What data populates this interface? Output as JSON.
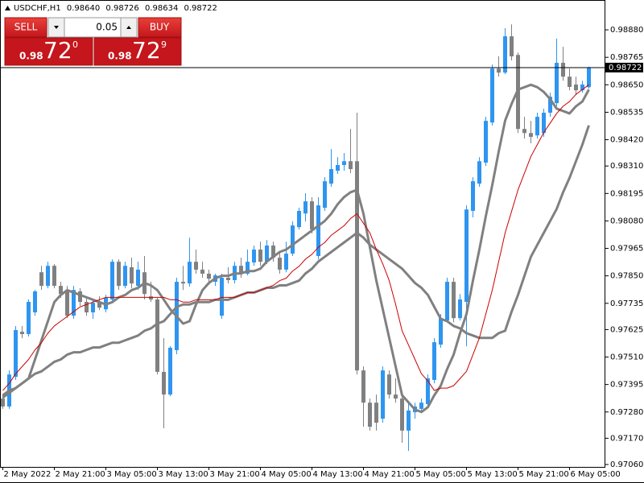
{
  "chart_data": {
    "type": "candlestick",
    "title": "USDCHF,H1",
    "ohlc_labels": [
      "0.98640",
      "0.98726",
      "0.98634",
      "0.98722"
    ],
    "categories": [
      "2 May 2022",
      null,
      null,
      null,
      null,
      null,
      null,
      null,
      "2 May 21:00",
      null,
      null,
      null,
      null,
      null,
      null,
      null,
      "3 May 05:00",
      null,
      null,
      null,
      null,
      null,
      null,
      null,
      "3 May 13:00",
      null,
      null,
      null,
      null,
      null,
      null,
      null,
      "3 May 21:00",
      null,
      null,
      null,
      null,
      null,
      null,
      null,
      "4 May 05:00",
      null,
      null,
      null,
      null,
      null,
      null,
      null,
      "4 May 13:00",
      null,
      null,
      null,
      null,
      null,
      null,
      null,
      "4 May 21:00",
      null,
      null,
      null,
      null,
      null,
      null,
      null,
      "5 May 05:00",
      null,
      null,
      null,
      null,
      null,
      null,
      null,
      "5 May 13:00",
      null,
      null,
      null,
      null,
      null,
      null,
      null,
      "5 May 21:00",
      null,
      null,
      null,
      null,
      null,
      null,
      null,
      "6 May 05:00",
      null,
      null,
      null
    ],
    "open": [
      0.97336,
      0.97303,
      0.97427,
      0.97616,
      0.97606,
      0.97697,
      0.97865,
      0.97808,
      0.97892,
      0.97808,
      0.97791,
      0.97683,
      0.97785,
      0.97741,
      0.97697,
      0.97737,
      0.9771,
      0.97751,
      0.97909,
      0.97808,
      0.97886,
      0.97808,
      0.97865,
      0.97764,
      0.97751,
      0.97448,
      0.97353,
      0.97539,
      0.97825,
      0.97818,
      0.97909,
      0.97876,
      0.97859,
      0.97825,
      0.97683,
      0.97842,
      0.97832,
      0.97892,
      0.97859,
      0.97906,
      0.9796,
      0.97909,
      0.97977,
      0.97926,
      0.97876,
      0.97943,
      0.98054,
      0.98111,
      0.98162,
      0.97933,
      0.98135,
      0.98236,
      0.9829,
      0.98314,
      0.9833,
      0.9833,
      0.97454,
      0.97319,
      0.97319,
      0.97252,
      0.97437,
      0.97353,
      0.97336,
      0.97202,
      0.97279,
      0.97293,
      0.97313,
      0.97414,
      0.97562,
      0.97663,
      0.97825,
      0.97673,
      0.97741,
      0.98122,
      0.98236,
      0.98324,
      0.98492,
      0.98718,
      0.98701,
      0.98853,
      0.98775,
      0.98465,
      0.98448,
      0.98438,
      0.98448,
      0.98533,
      0.98573,
      0.98742,
      0.98684,
      0.98651,
      0.98627,
      0.9864
    ],
    "high": [
      0.97353,
      0.97454,
      0.9764,
      0.9764,
      0.97751,
      0.97791,
      0.97892,
      0.97909,
      0.97899,
      0.97825,
      0.97808,
      0.97808,
      0.97798,
      0.97758,
      0.97751,
      0.97764,
      0.97771,
      0.97919,
      0.97919,
      0.97909,
      0.97926,
      0.97909,
      0.97933,
      0.97825,
      0.97758,
      0.97589,
      0.97555,
      0.97842,
      0.97892,
      0.9801,
      0.9796,
      0.97909,
      0.97876,
      0.97859,
      0.97859,
      0.97886,
      0.97909,
      0.97926,
      0.9796,
      0.97977,
      0.97993,
      0.98,
      0.97993,
      0.97953,
      0.97993,
      0.98078,
      0.98135,
      0.98196,
      0.98179,
      0.98179,
      0.98263,
      0.98381,
      0.98347,
      0.98364,
      0.98465,
      0.98533,
      0.97471,
      0.97336,
      0.97353,
      0.97471,
      0.97454,
      0.97421,
      0.97353,
      0.97319,
      0.97319,
      0.97336,
      0.97437,
      0.97589,
      0.9769,
      0.97842,
      0.97842,
      0.97774,
      0.98145,
      0.98263,
      0.98347,
      0.98516,
      0.98735,
      0.98769,
      0.98887,
      0.98903,
      0.98785,
      0.98516,
      0.98499,
      0.98533,
      0.9855,
      0.98617,
      0.98843,
      0.98809,
      0.98718,
      0.98684,
      0.98667,
      0.98726
    ],
    "low": [
      0.97293,
      0.97293,
      0.97414,
      0.97589,
      0.97596,
      0.97683,
      0.97791,
      0.97798,
      0.97798,
      0.97758,
      0.97673,
      0.9767,
      0.97724,
      0.97683,
      0.9767,
      0.97707,
      0.97697,
      0.97737,
      0.97791,
      0.97798,
      0.97798,
      0.97791,
      0.97751,
      0.97741,
      0.97437,
      0.97212,
      0.97346,
      0.97522,
      0.97791,
      0.97805,
      0.97859,
      0.97842,
      0.97825,
      0.97808,
      0.9767,
      0.97818,
      0.97818,
      0.97842,
      0.97852,
      0.97892,
      0.97892,
      0.97899,
      0.97909,
      0.97859,
      0.97865,
      0.97933,
      0.98044,
      0.98078,
      0.98027,
      0.97919,
      0.98122,
      0.98223,
      0.98277,
      0.9829,
      0.9828,
      0.97437,
      0.97218,
      0.97202,
      0.97202,
      0.97235,
      0.97336,
      0.97319,
      0.97151,
      0.97117,
      0.97252,
      0.97279,
      0.97299,
      0.974,
      0.97549,
      0.97656,
      0.97656,
      0.97663,
      0.97555,
      0.98095,
      0.98223,
      0.9831,
      0.98479,
      0.98684,
      0.98694,
      0.98752,
      0.98448,
      0.98425,
      0.98405,
      0.98425,
      0.98432,
      0.98516,
      0.9856,
      0.98667,
      0.98627,
      0.98607,
      0.98617,
      0.98634
    ],
    "close": [
      0.97303,
      0.97437,
      0.97623,
      0.97606,
      0.97741,
      0.97785,
      0.97808,
      0.97892,
      0.97808,
      0.97774,
      0.97683,
      0.97791,
      0.97741,
      0.97697,
      0.97737,
      0.97717,
      0.97758,
      0.97909,
      0.97808,
      0.97892,
      0.97818,
      0.97876,
      0.97774,
      0.97751,
      0.97448,
      0.97353,
      0.97549,
      0.97825,
      0.97818,
      0.97909,
      0.97876,
      0.97859,
      0.97838,
      0.97852,
      0.97842,
      0.97832,
      0.97892,
      0.97859,
      0.97909,
      0.9796,
      0.97909,
      0.97977,
      0.97926,
      0.97876,
      0.97943,
      0.98061,
      0.98122,
      0.98162,
      0.98044,
      0.98145,
      0.98246,
      0.98297,
      0.98314,
      0.9833,
      0.98297,
      0.97454,
      0.97319,
      0.97218,
      0.97235,
      0.97454,
      0.97353,
      0.97336,
      0.97202,
      0.97286,
      0.97303,
      0.97319,
      0.97421,
      0.97572,
      0.97673,
      0.97825,
      0.97673,
      0.97751,
      0.98128,
      0.98246,
      0.9833,
      0.98499,
      0.98718,
      0.98701,
      0.98853,
      0.98769,
      0.98465,
      0.98448,
      0.98432,
      0.98516,
      0.98533,
      0.986,
      0.98742,
      0.98684,
      0.98641,
      0.98627,
      0.98651,
      0.98722
    ],
    "up_color": "#2e95f0",
    "down_color": "#808080",
    "series": [
      {
        "color": "#808080",
        "line_width": 3,
        "values": [
          0.9734,
          0.9736,
          0.9738,
          0.974,
          0.9742,
          0.975,
          0.9758,
          0.9766,
          0.9774,
          0.9777,
          0.9779,
          0.9778,
          0.9777,
          0.9776,
          0.9775,
          0.9774,
          0.9773,
          0.9774,
          0.9776,
          0.9777,
          0.9779,
          0.978,
          0.9782,
          0.9781,
          0.9779,
          0.9775,
          0.9771,
          0.9768,
          0.9765,
          0.9766,
          0.9773,
          0.9779,
          0.9782,
          0.9784,
          0.9785,
          0.9785,
          0.9786,
          0.9786,
          0.9787,
          0.9787,
          0.9788,
          0.9791,
          0.9793,
          0.9795,
          0.9796,
          0.9798,
          0.98,
          0.9802,
          0.9804,
          0.9806,
          0.9808,
          0.9811,
          0.9815,
          0.9818,
          0.982,
          0.9821,
          0.9811,
          0.9797,
          0.9783,
          0.9771,
          0.9759,
          0.9747,
          0.9735,
          0.9732,
          0.9729,
          0.9728,
          0.973,
          0.9735,
          0.9739,
          0.9746,
          0.9752,
          0.9761,
          0.9769,
          0.9783,
          0.9796,
          0.981,
          0.9823,
          0.9837,
          0.985,
          0.9857,
          0.9863,
          0.9864,
          0.9865,
          0.9864,
          0.9862,
          0.9859,
          0.9855,
          0.9854,
          0.9853,
          0.9856,
          0.9858,
          0.9863
        ]
      },
      {
        "color": "#808080",
        "line_width": 3,
        "values": [
          0.9735,
          0.9737,
          0.9738,
          0.974,
          0.9742,
          0.9744,
          0.9745,
          0.9747,
          0.9749,
          0.975,
          0.9752,
          0.9753,
          0.9753,
          0.9754,
          0.9755,
          0.9755,
          0.9756,
          0.9757,
          0.9757,
          0.9758,
          0.9759,
          0.976,
          0.9762,
          0.9763,
          0.9765,
          0.9766,
          0.9769,
          0.9772,
          0.9773,
          0.9773,
          0.9774,
          0.9774,
          0.9774,
          0.9775,
          0.9775,
          0.9775,
          0.9776,
          0.9777,
          0.9778,
          0.9778,
          0.9779,
          0.978,
          0.978,
          0.9781,
          0.9781,
          0.9782,
          0.9783,
          0.9786,
          0.9788,
          0.9791,
          0.9793,
          0.9795,
          0.9797,
          0.9799,
          0.9801,
          0.9803,
          0.9801,
          0.9798,
          0.9796,
          0.9794,
          0.9792,
          0.979,
          0.9788,
          0.9785,
          0.9782,
          0.978,
          0.9777,
          0.9772,
          0.9767,
          0.9766,
          0.9764,
          0.9763,
          0.9761,
          0.976,
          0.9759,
          0.9759,
          0.9759,
          0.9761,
          0.9762,
          0.977,
          0.9777,
          0.9785,
          0.9793,
          0.9798,
          0.9803,
          0.9808,
          0.9813,
          0.982,
          0.9826,
          0.9833,
          0.984,
          0.9848
        ]
      },
      {
        "color": "#cc0000",
        "line_width": 1,
        "values": [
          0.9737,
          0.974,
          0.9744,
          0.9747,
          0.975,
          0.9754,
          0.9757,
          0.9761,
          0.9764,
          0.9766,
          0.9768,
          0.977,
          0.9772,
          0.9773,
          0.9774,
          0.9775,
          0.9776,
          0.9776,
          0.9776,
          0.9776,
          0.9776,
          0.9776,
          0.9776,
          0.9776,
          0.9776,
          0.9776,
          0.9775,
          0.9775,
          0.9774,
          0.9774,
          0.9775,
          0.9775,
          0.9775,
          0.9775,
          0.9776,
          0.9776,
          0.9776,
          0.9777,
          0.9778,
          0.9778,
          0.9779,
          0.978,
          0.9781,
          0.9783,
          0.9784,
          0.9787,
          0.9789,
          0.9792,
          0.9794,
          0.9797,
          0.9799,
          0.9802,
          0.9804,
          0.9806,
          0.9809,
          0.9811,
          0.9807,
          0.9803,
          0.9796,
          0.979,
          0.9783,
          0.9773,
          0.9762,
          0.9756,
          0.975,
          0.9744,
          0.9741,
          0.9737,
          0.9738,
          0.9738,
          0.9739,
          0.9742,
          0.9745,
          0.9752,
          0.9759,
          0.9769,
          0.9779,
          0.9791,
          0.9803,
          0.9812,
          0.9821,
          0.9828,
          0.9835,
          0.984,
          0.9845,
          0.9849,
          0.9853,
          0.9856,
          0.9858,
          0.9861,
          0.9863,
          0.9865
        ]
      }
    ],
    "ylim": [
      0.9705,
      0.99005
    ],
    "yticks": [
      {
        "value": 0.9888,
        "label": "0.98880"
      },
      0.98765,
      {
        "value": 0.9865,
        "label": "0.98650"
      },
      0.98535,
      {
        "value": 0.9842,
        "label": "0.98420"
      },
      {
        "value": 0.9831,
        "label": "0.98310"
      },
      0.98195,
      {
        "value": 0.9808,
        "label": "0.98080"
      },
      0.97965,
      {
        "value": 0.9785,
        "label": "0.97850"
      },
      0.97735,
      0.97625,
      {
        "value": 0.9751,
        "label": "0.97510"
      },
      0.97395,
      {
        "value": 0.9728,
        "label": "0.97280"
      },
      {
        "value": 0.9717,
        "label": "0.97170"
      },
      {
        "value": 0.9706,
        "label": "0.97060"
      }
    ],
    "last_price": {
      "value": 0.98722,
      "label": "0.98722"
    }
  },
  "trade_panel": {
    "sell": "SELL",
    "buy": "BUY",
    "lot": 0.05,
    "sell_price": {
      "big": "0.98",
      "pips": "72",
      "point": "0"
    },
    "buy_price": {
      "big": "0.98",
      "pips": "72",
      "point": "9"
    }
  }
}
